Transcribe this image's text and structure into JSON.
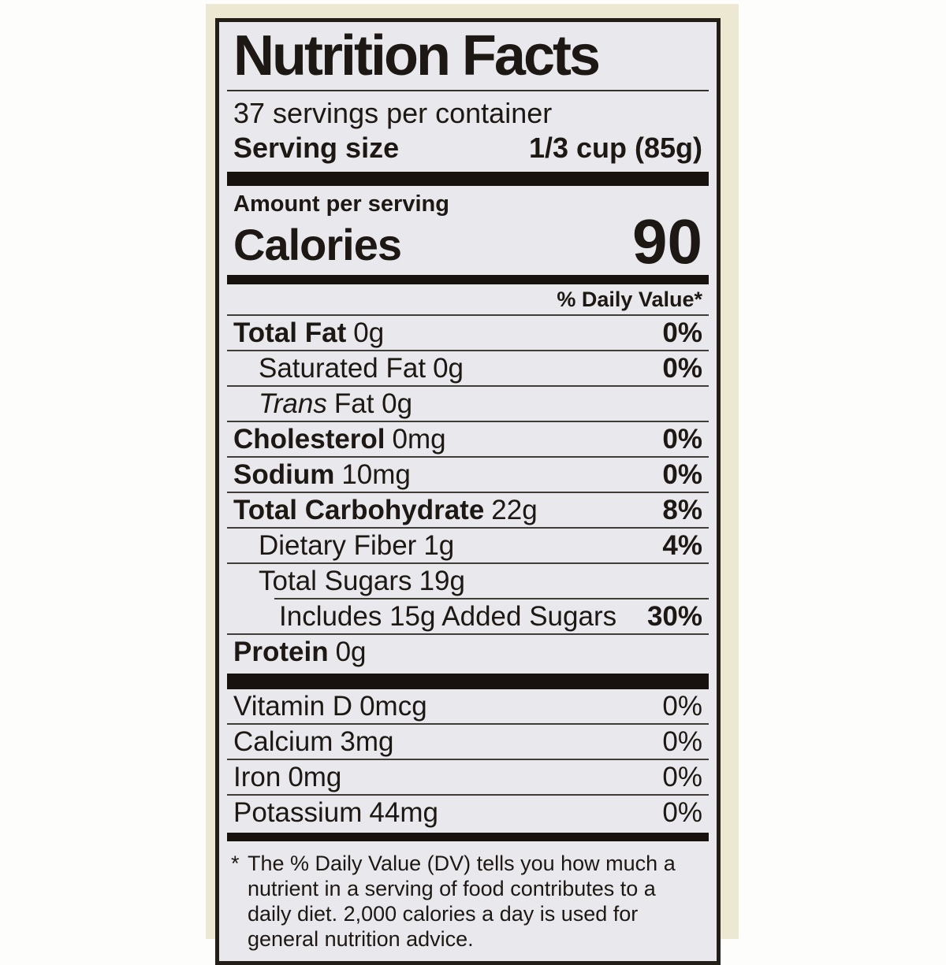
{
  "label": {
    "title": "Nutrition Facts",
    "servings_per_container": "37 servings per container",
    "serving_size_label": "Serving size",
    "serving_size_value": "1/3 cup (85g)",
    "amount_per_serving": "Amount per serving",
    "calories_label": "Calories",
    "calories_value": "90",
    "daily_value_header": "% Daily Value*",
    "main_rows": [
      {
        "name": "Total Fat",
        "amount": "0g",
        "dv": "0%"
      },
      {
        "name": "Saturated Fat",
        "amount": "0g",
        "dv": "0%"
      },
      {
        "name": "Trans",
        "amount": "Fat 0g",
        "dv": ""
      },
      {
        "name": "Cholesterol",
        "amount": "0mg",
        "dv": "0%"
      },
      {
        "name": "Sodium",
        "amount": "10mg",
        "dv": "0%"
      },
      {
        "name": "Total Carbohydrate",
        "amount": "22g",
        "dv": "8%"
      },
      {
        "name": "Dietary Fiber",
        "amount": "1g",
        "dv": "4%"
      },
      {
        "name": "Total Sugars",
        "amount": "19g",
        "dv": ""
      },
      {
        "name": "Includes 15g Added Sugars",
        "amount": "",
        "dv": "30%"
      },
      {
        "name": "Protein",
        "amount": "0g",
        "dv": ""
      }
    ],
    "vitamin_rows": [
      {
        "name": "Vitamin D",
        "amount": "0mcg",
        "dv": "0%"
      },
      {
        "name": "Calcium",
        "amount": "3mg",
        "dv": "0%"
      },
      {
        "name": "Iron",
        "amount": "0mg",
        "dv": "0%"
      },
      {
        "name": "Potassium",
        "amount": "44mg",
        "dv": "0%"
      }
    ],
    "footnote_marker": "*",
    "footnote": "The % Daily Value (DV) tells you how much a nutrient in a serving of food contributes to a daily diet. 2,000 calories a day is used for general nutrition advice."
  },
  "colors": {
    "paper": "#ece8d1",
    "label_background": "#e9e8ec",
    "ink": "#1d1813"
  }
}
